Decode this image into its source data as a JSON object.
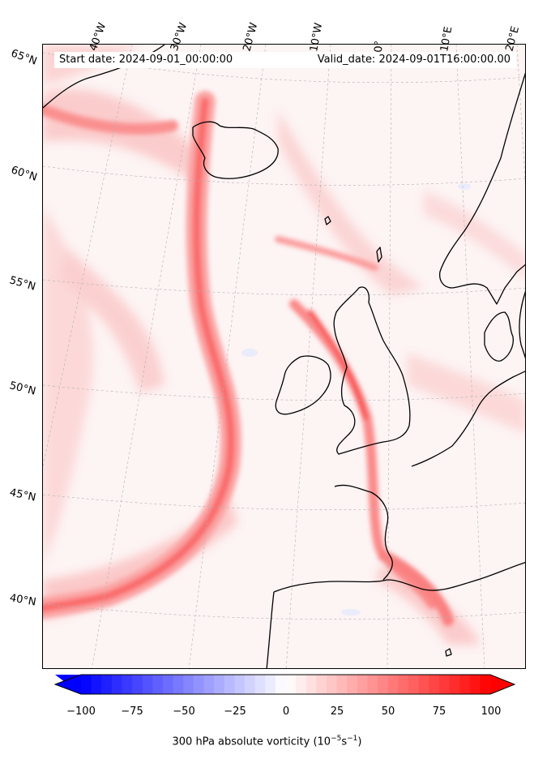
{
  "map": {
    "start_date": "Start date: 2024-09-01_00:00:00",
    "valid_date": "Valid_date: 2024-09-01T16:00:00.00",
    "lon_labels": [
      "40°W",
      "30°W",
      "20°W",
      "10°W",
      "0°",
      "10°E",
      "20°E"
    ],
    "lat_labels": [
      "65°N",
      "60°N",
      "55°N",
      "50°N",
      "45°N",
      "40°N"
    ],
    "field": "300 hPa absolute vorticity",
    "colors": {
      "max": "#ff0000",
      "min": "#0000ff",
      "mid": "#ffffff",
      "coast": "#000000"
    }
  },
  "colorbar": {
    "ticks": [
      "−100",
      "−75",
      "−50",
      "−25",
      "0",
      "25",
      "50",
      "75",
      "100"
    ],
    "range": [
      -100,
      100
    ],
    "label_main": "300 hPa absolute vorticity (10",
    "label_exp1": "−5",
    "label_mid": "s",
    "label_exp2": "−1",
    "label_end": ")"
  }
}
